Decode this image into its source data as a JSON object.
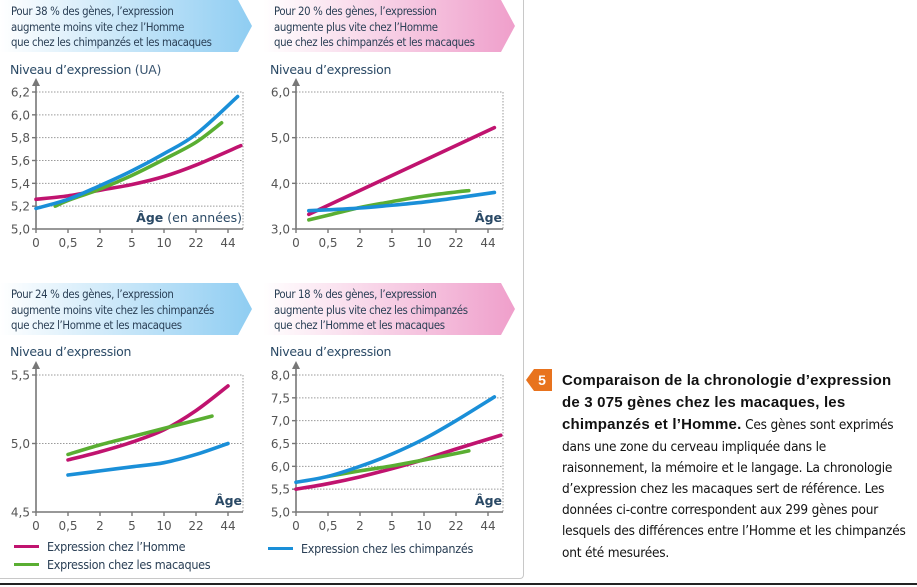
{
  "figure": {
    "number": "5",
    "caption_title": "Comparaison de la chronologie d’expression de 3 075 gènes chez les macaques, les chimpanzés et l’Homme.",
    "caption_body": "Ces gènes sont exprimés dans une zone du cerveau impliquée dans le raisonnement, la mémoire et le langage. La chronologie d’expression chez les macaques sert de référence. Les données ci-contre correspondent aux 299 gènes pour lesquels des différences entre l’Homme et les chimpanzés ont été mesurées.",
    "accent_color": "#e8731e"
  },
  "legend": {
    "items": [
      {
        "label": "Expression chez l’Homme",
        "color": "#c0136f"
      },
      {
        "label": "Expression chez les macaques",
        "color": "#5aae32"
      },
      {
        "label": "Expression chez les chimpanzés",
        "color": "#1a8fd8"
      }
    ]
  },
  "chart_data": [
    {
      "type": "line",
      "banner": "Pour 38 % des gènes, l’expression\naugmente moins vite chez l’Homme\nque chez les chimpanzés et les macaques",
      "banner_color": "blue",
      "ylabel": "Niveau d’expression",
      "ylabel_unit": "(UA)",
      "xlabel": "Âge",
      "xlabel_unit": "(en années)",
      "x_ticks": [
        "0",
        "0,5",
        "2",
        "5",
        "10",
        "22",
        "44"
      ],
      "y_ticks": [
        {
          "v": 5.0,
          "label": "5,0"
        },
        {
          "v": 5.2,
          "label": "5,2"
        },
        {
          "v": 5.4,
          "label": "5,4"
        },
        {
          "v": 5.6,
          "label": "5,6"
        },
        {
          "v": 5.8,
          "label": "5,8"
        },
        {
          "v": 6.0,
          "label": "6,0"
        },
        {
          "v": 6.2,
          "label": "6,2"
        }
      ],
      "ylim": [
        5.0,
        6.2
      ],
      "grid": true,
      "series": [
        {
          "name": "Expression chez l’Homme",
          "color": "#c0136f",
          "points": [
            [
              0,
              5.26
            ],
            [
              1,
              5.29
            ],
            [
              2,
              5.34
            ],
            [
              3,
              5.39
            ],
            [
              4,
              5.46
            ],
            [
              5,
              5.56
            ],
            [
              6.4,
              5.73
            ]
          ]
        },
        {
          "name": "Expression chez les macaques",
          "color": "#5aae32",
          "points": [
            [
              0.6,
              5.2
            ],
            [
              1,
              5.25
            ],
            [
              2,
              5.35
            ],
            [
              3,
              5.47
            ],
            [
              4,
              5.61
            ],
            [
              5,
              5.76
            ],
            [
              5.8,
              5.93
            ]
          ]
        },
        {
          "name": "Expression chez les chimpanzés",
          "color": "#1a8fd8",
          "points": [
            [
              0,
              5.18
            ],
            [
              1,
              5.26
            ],
            [
              2,
              5.38
            ],
            [
              3,
              5.51
            ],
            [
              4,
              5.66
            ],
            [
              5,
              5.83
            ],
            [
              6.3,
              6.16
            ]
          ]
        }
      ]
    },
    {
      "type": "line",
      "banner": "Pour 20 % des gènes, l’expression\naugmente plus vite chez l’Homme\nque chez les chimpanzés et les macaques",
      "banner_color": "pink",
      "ylabel": "Niveau d’expression",
      "ylabel_unit": "",
      "xlabel": "Âge",
      "xlabel_unit": "",
      "x_ticks": [
        "0",
        "0,5",
        "2",
        "5",
        "10",
        "22",
        "44"
      ],
      "y_ticks": [
        {
          "v": 3.0,
          "label": "3,0"
        },
        {
          "v": 4.0,
          "label": "4,0"
        },
        {
          "v": 5.0,
          "label": "5,0"
        },
        {
          "v": 6.0,
          "label": "6,0"
        }
      ],
      "ylim": [
        3.0,
        6.0
      ],
      "grid": true,
      "series": [
        {
          "name": "Expression chez l’Homme",
          "color": "#c0136f",
          "points": [
            [
              0.4,
              3.32
            ],
            [
              6.2,
              5.22
            ]
          ]
        },
        {
          "name": "Expression chez les macaques",
          "color": "#5aae32",
          "points": [
            [
              0.4,
              3.2
            ],
            [
              1,
              3.3
            ],
            [
              2,
              3.47
            ],
            [
              3,
              3.6
            ],
            [
              4,
              3.72
            ],
            [
              5,
              3.81
            ],
            [
              5.4,
              3.84
            ]
          ]
        },
        {
          "name": "Expression chez les chimpanzés",
          "color": "#1a8fd8",
          "points": [
            [
              0.4,
              3.4
            ],
            [
              1,
              3.42
            ],
            [
              2,
              3.46
            ],
            [
              3,
              3.52
            ],
            [
              4,
              3.59
            ],
            [
              5,
              3.68
            ],
            [
              6.2,
              3.8
            ]
          ]
        }
      ]
    },
    {
      "type": "line",
      "banner": "Pour 24 % des gènes, l’expression\naugmente moins vite chez les chimpanzés\nque chez l’Homme et les macaques",
      "banner_color": "blue",
      "ylabel": "Niveau d’expression",
      "ylabel_unit": "",
      "xlabel": "Âge",
      "xlabel_unit": "",
      "x_ticks": [
        "0",
        "0,5",
        "2",
        "5",
        "10",
        "22",
        "44"
      ],
      "y_ticks": [
        {
          "v": 4.5,
          "label": "4,5"
        },
        {
          "v": 5.0,
          "label": "5,0"
        },
        {
          "v": 5.5,
          "label": "5,5"
        }
      ],
      "ylim": [
        4.5,
        5.5
      ],
      "grid": true,
      "series": [
        {
          "name": "Expression chez l’Homme",
          "color": "#c0136f",
          "points": [
            [
              1,
              4.88
            ],
            [
              2,
              4.94
            ],
            [
              3,
              5.01
            ],
            [
              4,
              5.1
            ],
            [
              5,
              5.24
            ],
            [
              6,
              5.42
            ]
          ]
        },
        {
          "name": "Expression chez les macaques",
          "color": "#5aae32",
          "points": [
            [
              1,
              4.92
            ],
            [
              2,
              4.99
            ],
            [
              3,
              5.05
            ],
            [
              4,
              5.11
            ],
            [
              5,
              5.17
            ],
            [
              5.5,
              5.2
            ]
          ]
        },
        {
          "name": "Expression chez les chimpanzés",
          "color": "#1a8fd8",
          "points": [
            [
              1,
              4.77
            ],
            [
              2,
              4.8
            ],
            [
              3,
              4.83
            ],
            [
              4,
              4.86
            ],
            [
              5,
              4.92
            ],
            [
              6,
              5.0
            ]
          ]
        }
      ]
    },
    {
      "type": "line",
      "banner": "Pour 18 % des gènes, l’expression\naugmente plus vite chez les chimpanzés\nque chez l’Homme et les macaques",
      "banner_color": "pink",
      "ylabel": "Niveau d’expression",
      "ylabel_unit": "",
      "xlabel": "Âge",
      "xlabel_unit": "",
      "x_ticks": [
        "0",
        "0,5",
        "2",
        "5",
        "10",
        "22",
        "44"
      ],
      "y_ticks": [
        {
          "v": 5.0,
          "label": "5,0"
        },
        {
          "v": 5.5,
          "label": "5,5"
        },
        {
          "v": 6.0,
          "label": "6,0"
        },
        {
          "v": 6.5,
          "label": "6,5"
        },
        {
          "v": 7.0,
          "label": "7,0"
        },
        {
          "v": 7.5,
          "label": "7,5"
        },
        {
          "v": 8.0,
          "label": "8,0"
        }
      ],
      "ylim": [
        5.0,
        8.0
      ],
      "grid": true,
      "series": [
        {
          "name": "Expression chez l’Homme",
          "color": "#c0136f",
          "points": [
            [
              0,
              5.5
            ],
            [
              1,
              5.62
            ],
            [
              2,
              5.77
            ],
            [
              3,
              5.95
            ],
            [
              4,
              6.15
            ],
            [
              5,
              6.38
            ],
            [
              6.4,
              6.68
            ]
          ]
        },
        {
          "name": "Expression chez les macaques",
          "color": "#5aae32",
          "points": [
            [
              1,
              5.78
            ],
            [
              2,
              5.9
            ],
            [
              3,
              6.01
            ],
            [
              4,
              6.14
            ],
            [
              5,
              6.28
            ],
            [
              5.4,
              6.34
            ]
          ]
        },
        {
          "name": "Expression chez les chimpanzés",
          "color": "#1a8fd8",
          "points": [
            [
              0,
              5.65
            ],
            [
              1,
              5.78
            ],
            [
              2,
              6.0
            ],
            [
              3,
              6.27
            ],
            [
              4,
              6.6
            ],
            [
              5,
              7.0
            ],
            [
              6.2,
              7.52
            ]
          ]
        }
      ]
    }
  ]
}
